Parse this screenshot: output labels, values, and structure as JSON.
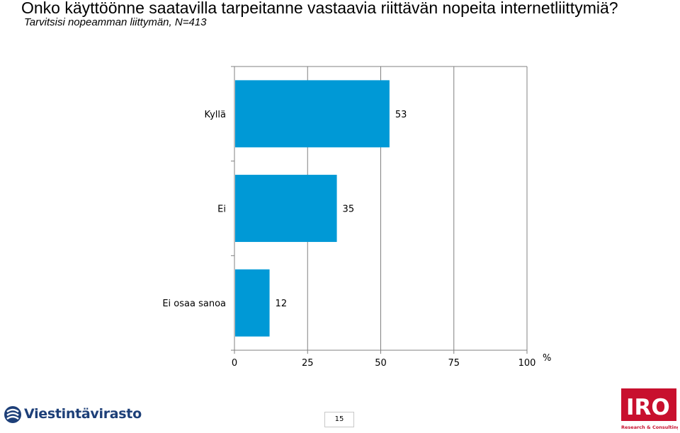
{
  "header": {
    "title": "Onko käyttöönne saatavilla tarpeitanne vastaavia riittävän nopeita internetliittymiä?",
    "subtitle": "Tarvitsisi nopeamman liittymän, N=413"
  },
  "chart_data": {
    "type": "bar",
    "orientation": "horizontal",
    "categories": [
      "Kyllä",
      "Ei",
      "Ei osaa sanoa"
    ],
    "values": [
      53,
      35,
      12
    ],
    "x_ticks": [
      0,
      25,
      50,
      75,
      100
    ],
    "xlim": [
      0,
      100
    ],
    "unit_label": "%",
    "grid": true,
    "bar_color": "#0099d6"
  },
  "footer": {
    "brand": "Viestintävirasto",
    "page_number": "15",
    "logo_text": "IRO",
    "logo_subtext": "Research & Consulting",
    "logo_color": "#c8102e",
    "brand_color": "#1d3f78"
  }
}
